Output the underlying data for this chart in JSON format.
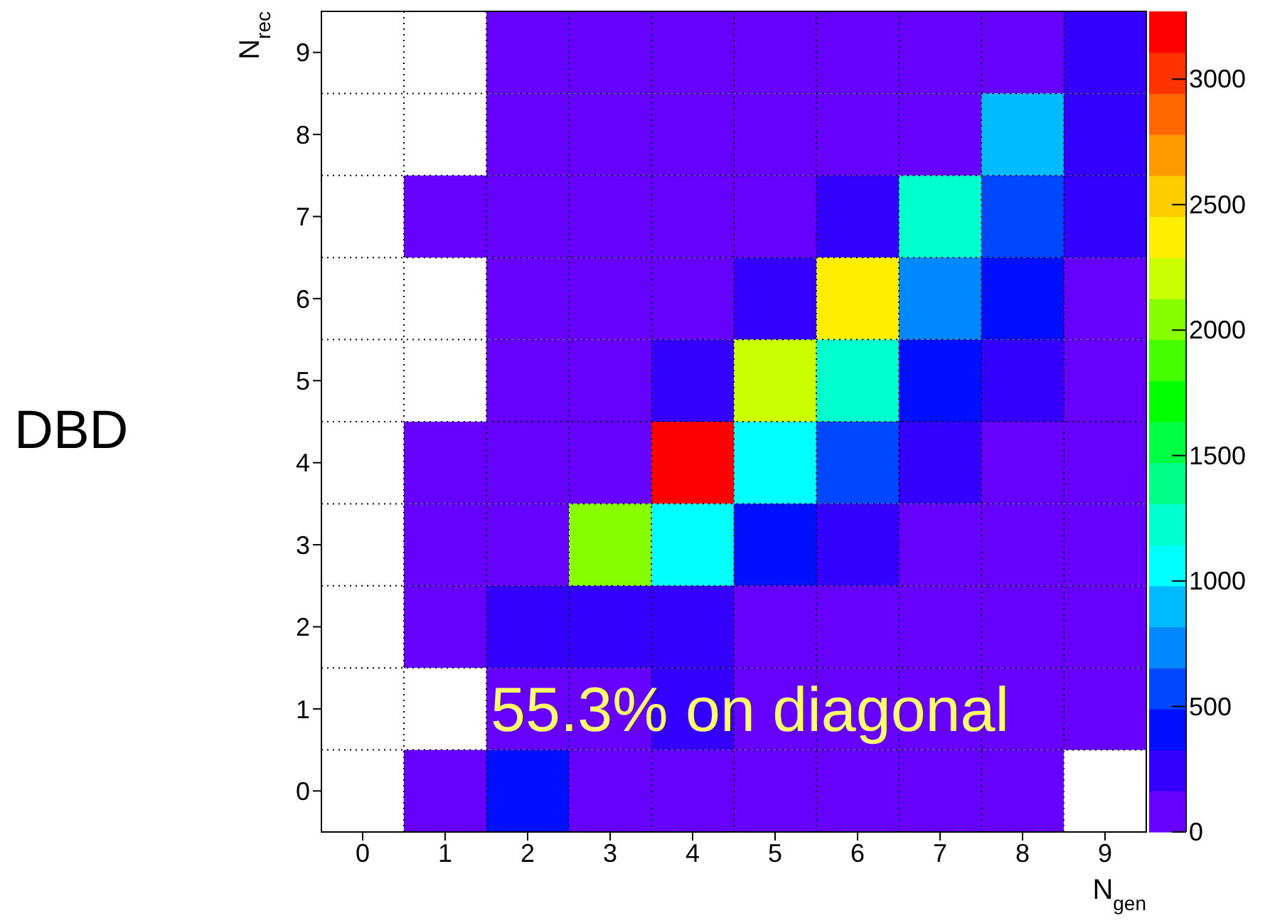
{
  "chart_data": {
    "type": "heatmap",
    "xlabel": "N$_{gen}$",
    "ylabel": "N$_{rec}$",
    "annotations": [
      "55.3% on diagonal",
      "DBD"
    ],
    "categories": [
      "0",
      "1",
      "2",
      "3",
      "4",
      "5",
      "6",
      "7",
      "8",
      "9"
    ],
    "y_categories": [
      "9",
      "8",
      "7",
      "6",
      "5",
      "4",
      "3",
      "2",
      "1",
      "0"
    ],
    "cells": [
      [
        null,
        null,
        80,
        80,
        80,
        80,
        80,
        80,
        80,
        245
      ],
      [
        null,
        null,
        80,
        80,
        80,
        80,
        80,
        80,
        900,
        245
      ],
      [
        null,
        80,
        80,
        80,
        80,
        80,
        245,
        1220,
        570,
        245
      ],
      [
        null,
        null,
        80,
        80,
        80,
        245,
        2370,
        735,
        410,
        80
      ],
      [
        null,
        null,
        80,
        80,
        245,
        2200,
        1220,
        410,
        245,
        80
      ],
      [
        null,
        80,
        80,
        80,
        3180,
        1060,
        570,
        245,
        80,
        80
      ],
      [
        null,
        80,
        80,
        2040,
        1060,
        410,
        245,
        80,
        80,
        80
      ],
      [
        null,
        80,
        245,
        245,
        245,
        80,
        80,
        80,
        80,
        80
      ],
      [
        null,
        null,
        80,
        80,
        245,
        80,
        80,
        80,
        80,
        80
      ],
      [
        null,
        80,
        410,
        80,
        80,
        80,
        80,
        80,
        80,
        null
      ]
    ],
    "clim": [
      0,
      3270
    ],
    "cticks": [
      0,
      500,
      1000,
      1500,
      2000,
      2500,
      3000
    ],
    "grid": true
  }
}
